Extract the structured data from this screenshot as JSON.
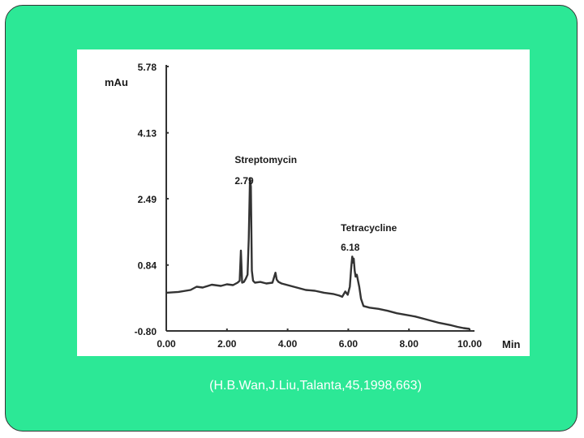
{
  "slide": {
    "background_color": "#2ce896",
    "citation": "(H.B.Wan,J.Liu,Talanta,45,1998,663)"
  },
  "chart_data": {
    "type": "line",
    "title": "",
    "xlabel": "Min",
    "ylabel": "mAu",
    "xlim": [
      0,
      10
    ],
    "ylim": [
      -0.8,
      5.78
    ],
    "x_ticks": [
      "0.00",
      "2.00",
      "4.00",
      "6.00",
      "8.00",
      "10.00"
    ],
    "y_ticks": [
      "5.78",
      "4.13",
      "2.49",
      "0.84",
      "-0.80"
    ],
    "grid": false,
    "line_color": "#333333",
    "annotations": [
      {
        "name": "Streptomycin",
        "retention_time": "2.79",
        "x": 2.79
      },
      {
        "name": "Tetracycline",
        "retention_time": "6.18",
        "x": 6.18
      }
    ],
    "series": [
      {
        "x": [
          0,
          0.4,
          0.8,
          1.0,
          1.2,
          1.5,
          1.8,
          2.0,
          2.2,
          2.35,
          2.42,
          2.46,
          2.5,
          2.56,
          2.62,
          2.68,
          2.72,
          2.76,
          2.79,
          2.82,
          2.86,
          2.92,
          3.1,
          3.3,
          3.5,
          3.6,
          3.64,
          3.7,
          3.8,
          4.0,
          4.3,
          4.6,
          4.9,
          5.2,
          5.5,
          5.7,
          5.8,
          5.9,
          5.98,
          6.05,
          6.1,
          6.13,
          6.16,
          6.18,
          6.21,
          6.24,
          6.28,
          6.32,
          6.36,
          6.42,
          6.5,
          6.7,
          7.0,
          7.3,
          7.6,
          7.9,
          8.2,
          8.5,
          8.8,
          9.0,
          9.2,
          9.4,
          9.6,
          9.8,
          10.0
        ],
        "y": [
          0.15,
          0.17,
          0.22,
          0.3,
          0.28,
          0.35,
          0.32,
          0.36,
          0.34,
          0.4,
          0.45,
          1.2,
          0.4,
          0.42,
          0.5,
          0.6,
          1.5,
          3.0,
          2.79,
          0.7,
          0.45,
          0.4,
          0.42,
          0.38,
          0.4,
          0.65,
          0.48,
          0.42,
          0.38,
          0.34,
          0.28,
          0.22,
          0.2,
          0.15,
          0.12,
          0.08,
          0.05,
          0.18,
          0.1,
          0.3,
          0.8,
          1.05,
          0.9,
          1.0,
          0.7,
          0.55,
          0.6,
          0.45,
          0.3,
          0.0,
          -0.18,
          -0.22,
          -0.25,
          -0.3,
          -0.36,
          -0.4,
          -0.44,
          -0.5,
          -0.56,
          -0.6,
          -0.63,
          -0.66,
          -0.7,
          -0.73,
          -0.75
        ]
      }
    ]
  }
}
